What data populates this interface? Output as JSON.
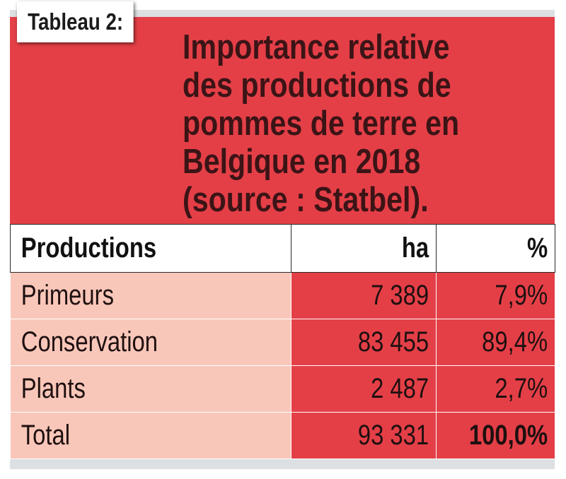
{
  "label": "Tableau 2:",
  "title_lines": [
    "Importance relative",
    "des productions de",
    "pommes de terre en",
    "Belgique en 2018",
    "(source : Statbel)."
  ],
  "table": {
    "headers": [
      "Productions",
      "ha",
      "%"
    ],
    "rows": [
      {
        "production": "Primeurs",
        "ha": "7 389",
        "pct": "7,9%"
      },
      {
        "production": "Conservation",
        "ha": "83 455",
        "pct": "89,4%"
      },
      {
        "production": "Plants",
        "ha": "2 487",
        "pct": "2,7%"
      },
      {
        "production": "Total",
        "ha": "93 331",
        "pct": "100,0%"
      }
    ]
  },
  "colors": {
    "banner_red": "#e43f47",
    "row_pink": "#f9c7b9",
    "title_text": "#3b1416"
  }
}
